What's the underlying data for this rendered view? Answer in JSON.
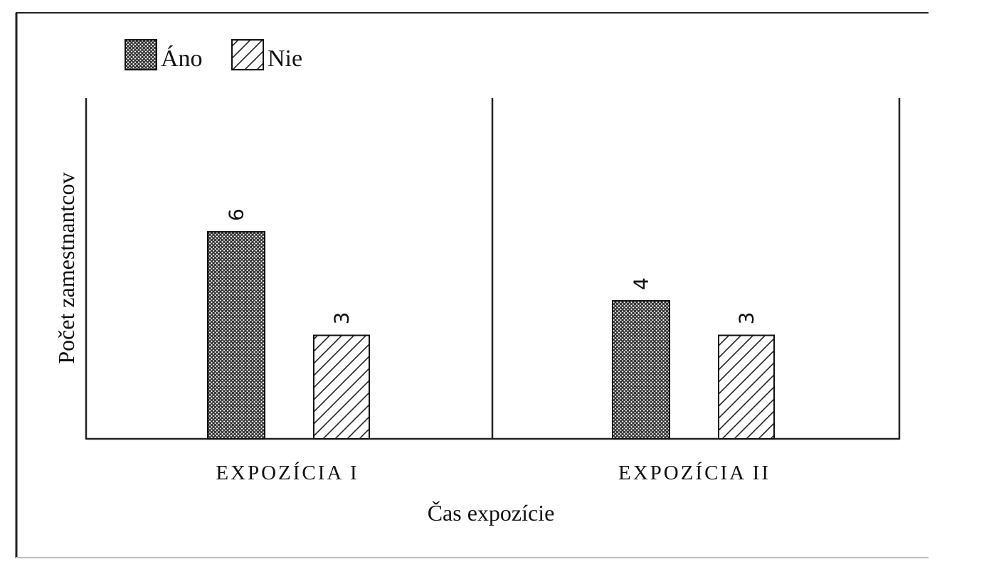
{
  "chart_data": {
    "type": "bar",
    "categories": [
      "EXPOZÍCIA I",
      "EXPOZÍCIA II"
    ],
    "series": [
      {
        "name": "Áno",
        "values": [
          6,
          4
        ],
        "pattern": "crosshatch-dark"
      },
      {
        "name": "Nie",
        "values": [
          3,
          3
        ],
        "pattern": "diagonal-hatch"
      }
    ],
    "data_labels": [
      [
        "6",
        "3"
      ],
      [
        "4",
        "3"
      ]
    ],
    "xlabel": "Čas expozície",
    "ylabel": "Počet zamestnantcov",
    "ylim": [
      0,
      10
    ],
    "legend_position": "top-left",
    "grid": false
  },
  "colors": {
    "frame": "#222222",
    "bar_stroke": "#111111",
    "hatch_dark": "#3a3a3a",
    "hatch_light": "#222222",
    "background": "#ffffff"
  }
}
